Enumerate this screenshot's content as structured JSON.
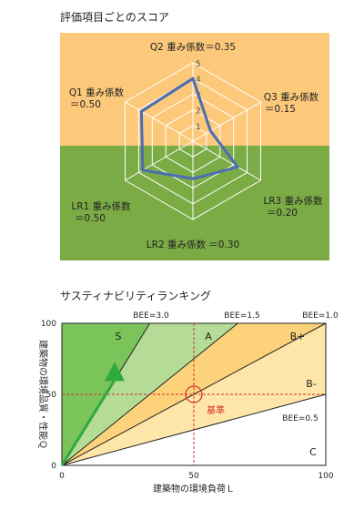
{
  "chart_data": [
    {
      "type": "radar",
      "title": "評価項目ごとのスコア",
      "rlim": [
        0,
        5
      ],
      "ticks": [
        "1",
        "2",
        "3",
        "4",
        "5"
      ],
      "axes": [
        {
          "line1": "Q2 重み係数＝0.35",
          "line2": ""
        },
        {
          "line1": "Q3 重み係数",
          "line2": "＝0.15"
        },
        {
          "line1": "LR3 重み係数",
          "line2": "＝0.20"
        },
        {
          "line1": "LR2 重み係数 ＝0.30",
          "line2": ""
        },
        {
          "line1": "LR1 重み係数",
          "line2": "＝0.50"
        },
        {
          "line1": "Q1 重み係数",
          "line2": "＝0.50"
        }
      ],
      "values": [
        4,
        1.3,
        3.3,
        2.4,
        3.7,
        3.8
      ],
      "colors": {
        "q_band": "#fcc97a",
        "lr_band": "#7bab45",
        "line": "#4a6db5"
      }
    },
    {
      "type": "scatter",
      "title": "サスティナビリティランキング",
      "xlabel": "建築物の環境負荷Ｌ",
      "ylabel": "建築物の環境品質・性能Ｑ",
      "xlim": [
        0,
        100
      ],
      "ylim": [
        0,
        100
      ],
      "xticks": [
        "0",
        "50",
        "100"
      ],
      "yticks": [
        "0",
        "50",
        "100"
      ],
      "lines": [
        {
          "label": "BEE=3.0",
          "slope": 3.0
        },
        {
          "label": "BEE=1.5",
          "slope": 1.5
        },
        {
          "label": "BEE=1.0",
          "slope": 1.0
        },
        {
          "label": "BEE=0.5",
          "slope": 0.5
        }
      ],
      "regions": [
        "S",
        "A",
        "B+",
        "B-",
        "C"
      ],
      "reference": {
        "label": "基準",
        "x": 50,
        "y": 50
      },
      "point": {
        "x": 20,
        "y": 60
      },
      "colors": {
        "S": "#7bc45a",
        "A": "#b5dc96",
        "Bplus": "#fcd37a",
        "Bminus": "#fde6a8",
        "C": "#ffffff",
        "arrow": "#2eaa3e",
        "reference": "#d42c2c"
      }
    }
  ]
}
